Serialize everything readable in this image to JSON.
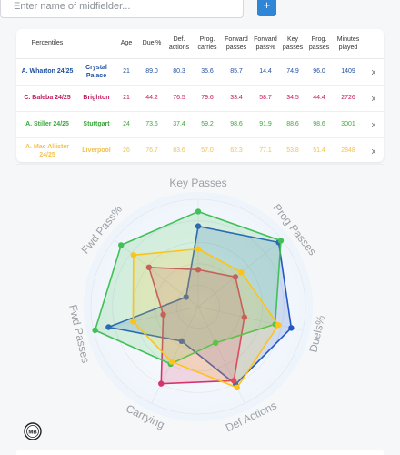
{
  "search": {
    "placeholder": "Enter name of midfielder...",
    "add_label": "+"
  },
  "table": {
    "headers": [
      "Percentiles",
      "",
      "Age",
      "Duel%",
      "Def. actions",
      "Prog. carries",
      "Forward passes",
      "Forward pass%",
      "Key passes",
      "Prog. passes",
      "Minutes played",
      ""
    ],
    "remove_label": "x",
    "rows": [
      {
        "player": "A. Wharton 24/25",
        "team": "Crystal Palace",
        "age": "21",
        "duel": "89.0",
        "def_actions": "80.3",
        "prog_carries": "35.6",
        "fwd_passes": "85.7",
        "fwd_pass_pct": "14.4",
        "key_passes": "74.9",
        "prog_passes": "96.0",
        "minutes": "1409",
        "color": "#1f4f9e"
      },
      {
        "player": "C. Baleba 24/25",
        "team": "Brighton",
        "age": "21",
        "duel": "44.2",
        "def_actions": "76.5",
        "prog_carries": "79.6",
        "fwd_passes": "33.4",
        "fwd_pass_pct": "58.7",
        "key_passes": "34.5",
        "prog_passes": "44.4",
        "minutes": "2726",
        "color": "#c2185b"
      },
      {
        "player": "A. Stiller 24/25",
        "team": "Stuttgart",
        "age": "24",
        "duel": "73.6",
        "def_actions": "37.4",
        "prog_carries": "59.2",
        "fwd_passes": "98.6",
        "fwd_pass_pct": "91.9",
        "key_passes": "88.6",
        "prog_passes": "98.6",
        "minutes": "3001",
        "color": "#3aa83a"
      },
      {
        "player": "A. Mac Allister 24/25",
        "team": "Liverpool",
        "age": "26",
        "duel": "76.7",
        "def_actions": "83.6",
        "prog_carries": "57.0",
        "fwd_passes": "62.3",
        "fwd_pass_pct": "77.1",
        "key_passes": "53.8",
        "prog_passes": "51.4",
        "minutes": "2848",
        "color": "#f2c24a"
      }
    ]
  },
  "radar": {
    "axes": [
      "Key Passes",
      "Prog Passes",
      "Duels%",
      "Def Actions",
      "Carrying",
      "Fwd Passes",
      "Fwd Pass%"
    ],
    "series": [
      {
        "player": "A. Wharton",
        "color": "#2457c5",
        "values": [
          74.9,
          96.0,
          89.0,
          80.3,
          35.6,
          85.7,
          14.4
        ]
      },
      {
        "player": "C. Baleba",
        "color": "#d6336c",
        "values": [
          34.5,
          44.4,
          44.2,
          76.5,
          79.6,
          33.4,
          58.7
        ]
      },
      {
        "player": "A. Stiller",
        "color": "#40c057",
        "values": [
          88.6,
          98.6,
          73.6,
          37.4,
          59.2,
          98.6,
          91.9
        ]
      },
      {
        "player": "A. Mac Allister",
        "color": "#fcc419",
        "values": [
          53.8,
          51.4,
          76.7,
          83.6,
          57.0,
          62.3,
          77.1
        ]
      }
    ]
  },
  "footer": {
    "logo_text": "MB"
  }
}
